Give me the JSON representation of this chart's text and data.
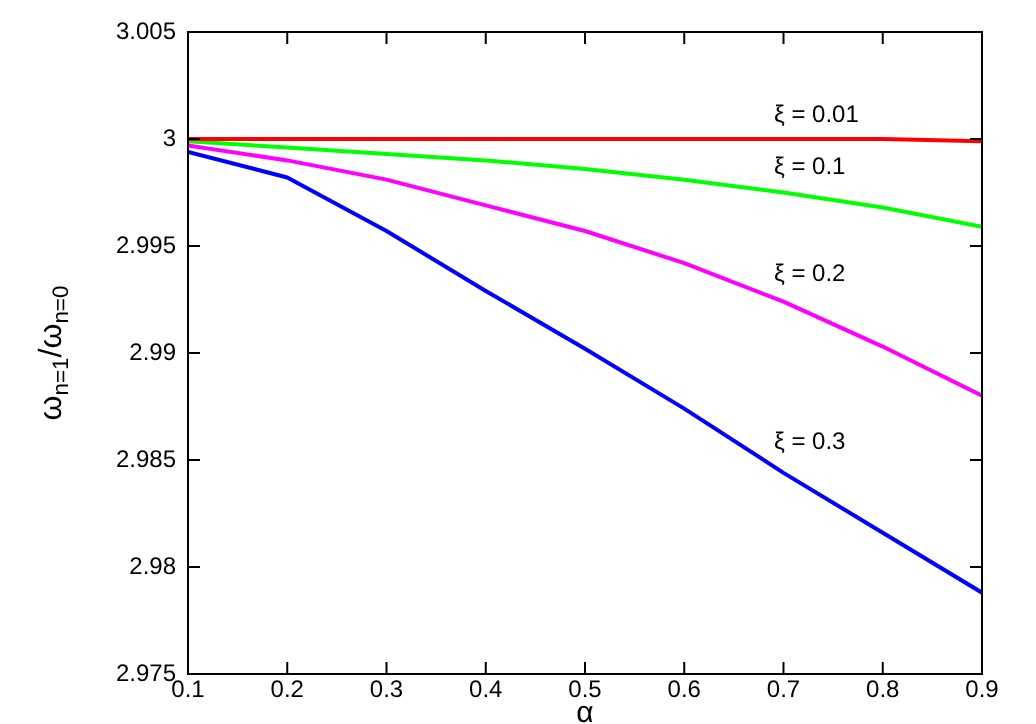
{
  "chart_data": {
    "type": "line",
    "xlabel": "α",
    "ylabel": "ω$_{n=1}$/ω$_{n=0}$",
    "x": [
      0.1,
      0.2,
      0.3,
      0.4,
      0.5,
      0.6,
      0.7,
      0.8,
      0.9
    ],
    "series": [
      {
        "name": "ξ = 0.01",
        "color": "#ff0000",
        "values": [
          3,
          3,
          3,
          3,
          3,
          3,
          3,
          3,
          2.9999
        ]
      },
      {
        "name": "ξ = 0.1",
        "color": "#00ff00",
        "values": [
          2.9999,
          2.9996,
          2.9993,
          2.999,
          2.9986,
          2.9981,
          2.9975,
          2.9968,
          2.9959
        ]
      },
      {
        "name": "ξ = 0.2",
        "color": "#ff00ff",
        "values": [
          2.9997,
          2.999,
          2.9981,
          2.9969,
          2.9957,
          2.9942,
          2.9924,
          2.9903,
          2.988
        ]
      },
      {
        "name": "ξ = 0.3",
        "color": "#0000ff",
        "values": [
          2.9994,
          2.9982,
          2.9957,
          2.9929,
          2.9902,
          2.9874,
          2.9844,
          2.9816,
          2.9788
        ]
      }
    ],
    "xlim": [
      0.1,
      0.9
    ],
    "xticks": [
      0.1,
      0.2,
      0.3,
      0.4,
      0.5,
      0.6,
      0.7,
      0.8,
      0.9
    ],
    "ylim": [
      2.975,
      3.005
    ],
    "yticks": [
      2.975,
      2.98,
      2.985,
      2.99,
      2.995,
      3,
      3.005
    ],
    "grid": false,
    "legend": false,
    "marker": "none",
    "line_style": "solid"
  }
}
